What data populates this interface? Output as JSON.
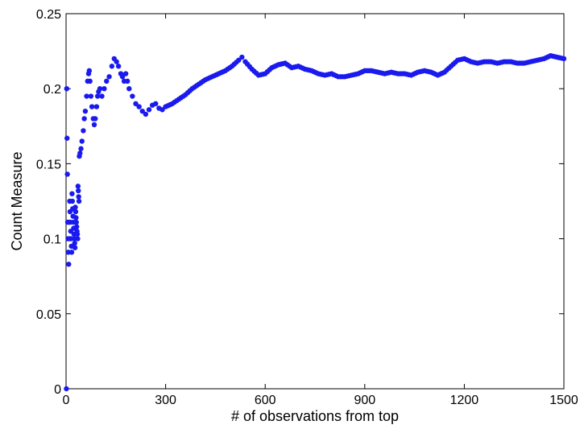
{
  "chart_data": {
    "type": "scatter",
    "title": "",
    "xlabel": "# of observations from top",
    "ylabel": "Count Measure",
    "xlim": [
      0,
      1500
    ],
    "ylim": [
      0,
      0.25
    ],
    "grid": false,
    "legend": "none",
    "x_ticks": [
      0,
      300,
      600,
      900,
      1200,
      1500
    ],
    "x_tick_labels": [
      "0",
      "300",
      "600",
      "900",
      "1200",
      "1500"
    ],
    "y_ticks": [
      0,
      0.05,
      0.1,
      0.15,
      0.2,
      0.25
    ],
    "y_tick_labels": [
      "0",
      "0.05",
      "0.1",
      "0.15",
      "0.2",
      "0.25"
    ],
    "marker_color": "#1a1aee",
    "series": [
      {
        "x": [
          1,
          2,
          3,
          4,
          5,
          6,
          7,
          8,
          9,
          10,
          11,
          12,
          13,
          14,
          15,
          16,
          17,
          18,
          19,
          20,
          21,
          22,
          23,
          24,
          25,
          26,
          27,
          28,
          29,
          30,
          31,
          32,
          33,
          34,
          35,
          36,
          37,
          38,
          39,
          40,
          42,
          45,
          48,
          52,
          55,
          58,
          62,
          65,
          68,
          70,
          72,
          75,
          78,
          82,
          85,
          88,
          92,
          95,
          98,
          102,
          108,
          115,
          122,
          130,
          138,
          145,
          152,
          158,
          165,
          170,
          175,
          180,
          185,
          190,
          200,
          210,
          220,
          230,
          240,
          250,
          260,
          270,
          280,
          290,
          300,
          320,
          340,
          360,
          380,
          400,
          420,
          440,
          460,
          480,
          500,
          520,
          530,
          540,
          560,
          580,
          600,
          620,
          640,
          660,
          680,
          700,
          720,
          740,
          760,
          780,
          800,
          820,
          840,
          860,
          880,
          900,
          920,
          940,
          960,
          980,
          1000,
          1020,
          1040,
          1060,
          1080,
          1100,
          1120,
          1140,
          1160,
          1180,
          1200,
          1220,
          1240,
          1260,
          1280,
          1300,
          1320,
          1340,
          1360,
          1380,
          1400,
          1420,
          1440,
          1460,
          1480,
          1500
        ],
        "y": [
          0,
          0.2,
          0.167,
          0.143,
          0.111,
          0.1,
          0.091,
          0.083,
          0.111,
          0.1,
          0.125,
          0.118,
          0.111,
          0.105,
          0.1,
          0.095,
          0.091,
          0.13,
          0.125,
          0.12,
          0.115,
          0.111,
          0.107,
          0.103,
          0.1,
          0.097,
          0.094,
          0.121,
          0.118,
          0.114,
          0.111,
          0.108,
          0.105,
          0.103,
          0.1,
          0.135,
          0.132,
          0.128,
          0.125,
          0.155,
          0.157,
          0.16,
          0.165,
          0.172,
          0.18,
          0.185,
          0.195,
          0.205,
          0.21,
          0.212,
          0.205,
          0.195,
          0.188,
          0.18,
          0.176,
          0.18,
          0.188,
          0.195,
          0.198,
          0.2,
          0.195,
          0.2,
          0.205,
          0.208,
          0.215,
          0.22,
          0.218,
          0.215,
          0.21,
          0.208,
          0.205,
          0.21,
          0.205,
          0.2,
          0.195,
          0.19,
          0.188,
          0.185,
          0.183,
          0.186,
          0.189,
          0.19,
          0.187,
          0.186,
          0.188,
          0.19,
          0.193,
          0.196,
          0.2,
          0.203,
          0.206,
          0.208,
          0.21,
          0.212,
          0.215,
          0.219,
          0.221,
          0.218,
          0.213,
          0.209,
          0.21,
          0.214,
          0.216,
          0.217,
          0.214,
          0.215,
          0.213,
          0.212,
          0.21,
          0.209,
          0.21,
          0.208,
          0.208,
          0.209,
          0.21,
          0.212,
          0.212,
          0.211,
          0.21,
          0.211,
          0.21,
          0.21,
          0.209,
          0.211,
          0.212,
          0.211,
          0.209,
          0.211,
          0.215,
          0.219,
          0.22,
          0.218,
          0.217,
          0.218,
          0.218,
          0.217,
          0.218,
          0.218,
          0.217,
          0.217,
          0.218,
          0.219,
          0.22,
          0.222,
          0.221,
          0.22
        ]
      }
    ]
  }
}
